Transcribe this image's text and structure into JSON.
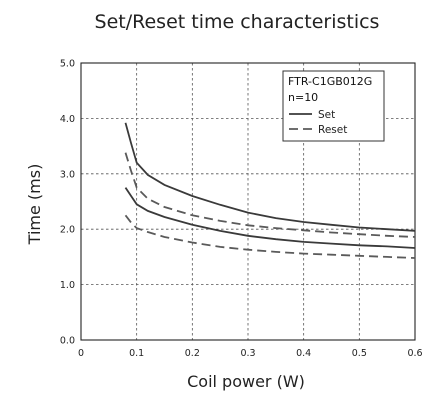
{
  "chart_data": {
    "type": "line",
    "title": "Set/Reset time characteristics",
    "xlabel": "Coil power (W)",
    "ylabel": "Time (ms)",
    "xlim": [
      0,
      0.6
    ],
    "ylim": [
      0.0,
      5.0
    ],
    "xticks": [
      "0",
      "0.1",
      "0.2",
      "0.3",
      "0.4",
      "0.5",
      "0.6"
    ],
    "yticks": [
      "0.0",
      "1.0",
      "2.0",
      "3.0",
      "4.0",
      "5.0"
    ],
    "grid": true,
    "legend": {
      "placement": "top-right",
      "title_lines": [
        "FTR-C1GB012G",
        "n=10"
      ],
      "entries": [
        {
          "label": "Set",
          "style": "solid"
        },
        {
          "label": "Reset",
          "style": "dashed"
        }
      ]
    },
    "series": [
      {
        "legend_label": "Set",
        "style": "solid",
        "x": [
          0.08,
          0.09,
          0.1,
          0.12,
          0.15,
          0.2,
          0.25,
          0.3,
          0.35,
          0.4,
          0.45,
          0.5,
          0.55,
          0.6
        ],
        "y": [
          3.92,
          3.55,
          3.2,
          2.98,
          2.8,
          2.6,
          2.44,
          2.3,
          2.2,
          2.13,
          2.08,
          2.03,
          2.0,
          1.97
        ]
      },
      {
        "legend_label": "Reset",
        "style": "dashed",
        "x": [
          0.08,
          0.09,
          0.1,
          0.12,
          0.15,
          0.2,
          0.25,
          0.3,
          0.35,
          0.4,
          0.45,
          0.5,
          0.55,
          0.6
        ],
        "y": [
          3.38,
          3.05,
          2.75,
          2.55,
          2.4,
          2.25,
          2.15,
          2.07,
          2.02,
          1.98,
          1.94,
          1.91,
          1.88,
          1.86
        ]
      },
      {
        "legend_label": "Set",
        "style": "solid",
        "x": [
          0.08,
          0.09,
          0.1,
          0.12,
          0.15,
          0.2,
          0.25,
          0.3,
          0.35,
          0.4,
          0.45,
          0.5,
          0.55,
          0.6
        ],
        "y": [
          2.75,
          2.6,
          2.45,
          2.33,
          2.22,
          2.08,
          1.97,
          1.88,
          1.82,
          1.77,
          1.74,
          1.71,
          1.69,
          1.66
        ]
      },
      {
        "legend_label": "Reset",
        "style": "dashed",
        "x": [
          0.08,
          0.09,
          0.1,
          0.12,
          0.15,
          0.2,
          0.25,
          0.3,
          0.35,
          0.4,
          0.45,
          0.5,
          0.55,
          0.6
        ],
        "y": [
          2.25,
          2.12,
          2.02,
          1.95,
          1.86,
          1.76,
          1.68,
          1.63,
          1.59,
          1.56,
          1.54,
          1.52,
          1.5,
          1.48
        ]
      }
    ]
  }
}
